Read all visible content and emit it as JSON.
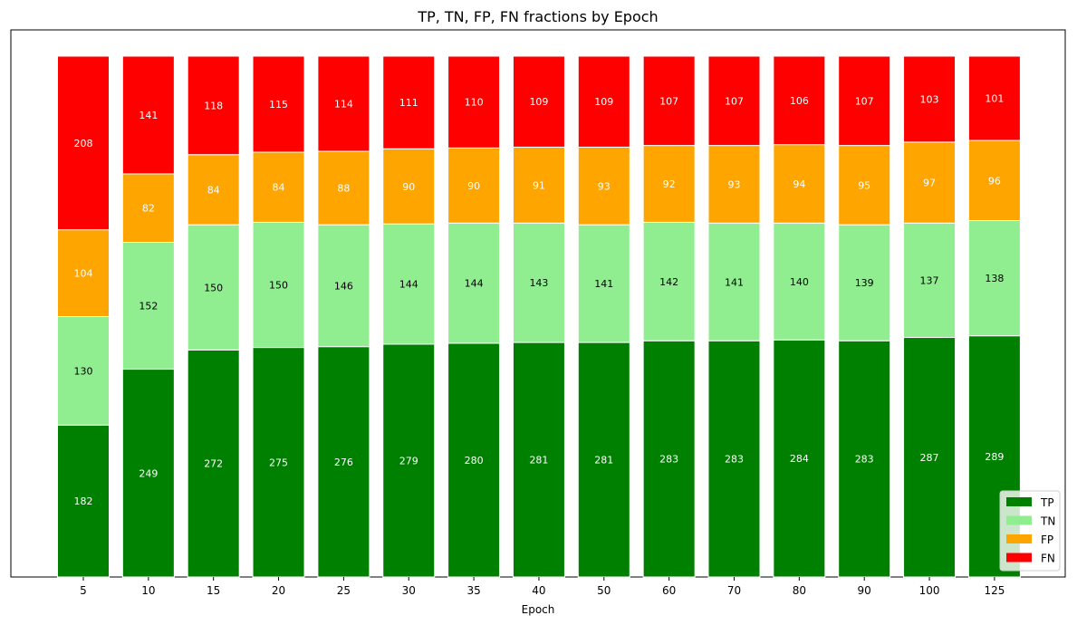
{
  "chart_data": {
    "type": "bar",
    "stacked": true,
    "normalized": true,
    "title": "TP, TN, FP, FN fractions by Epoch",
    "xlabel": "Epoch",
    "ylabel": "",
    "ylim": [
      0,
      1
    ],
    "categories": [
      "5",
      "10",
      "15",
      "20",
      "25",
      "30",
      "35",
      "40",
      "50",
      "60",
      "70",
      "80",
      "90",
      "100",
      "125"
    ],
    "series": [
      {
        "name": "TP",
        "color": "#008000",
        "label_color": "#ffffff",
        "values": [
          182,
          249,
          272,
          275,
          276,
          279,
          280,
          281,
          281,
          283,
          283,
          284,
          283,
          287,
          289
        ]
      },
      {
        "name": "TN",
        "color": "#90ee90",
        "label_color": "#000000",
        "values": [
          130,
          152,
          150,
          150,
          146,
          144,
          144,
          143,
          141,
          142,
          141,
          140,
          139,
          137,
          138
        ]
      },
      {
        "name": "FP",
        "color": "#ffa500",
        "label_color": "#ffffff",
        "values": [
          104,
          82,
          84,
          84,
          88,
          90,
          90,
          91,
          93,
          92,
          93,
          94,
          95,
          97,
          96
        ]
      },
      {
        "name": "FN",
        "color": "#ff0000",
        "label_color": "#ffffff",
        "values": [
          208,
          141,
          118,
          115,
          114,
          111,
          110,
          109,
          109,
          107,
          107,
          106,
          107,
          103,
          101
        ]
      }
    ],
    "grid": false,
    "legend_position": "lower-right"
  }
}
